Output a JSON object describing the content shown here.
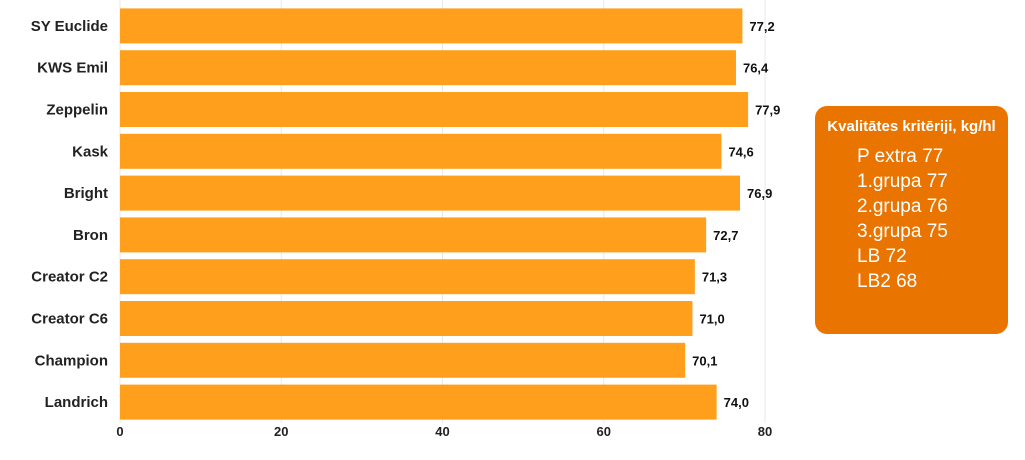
{
  "chart_data": {
    "type": "bar",
    "orientation": "horizontal",
    "categories": [
      "SY Euclide",
      "KWS Emil",
      "Zeppelin",
      "Kask",
      "Bright",
      "Bron",
      "Creator C2",
      "Creator C6",
      "Champion",
      "Landrich"
    ],
    "values": [
      77.2,
      76.4,
      77.9,
      74.6,
      76.9,
      72.7,
      71.3,
      71.0,
      70.1,
      74.0
    ],
    "value_labels": [
      "77,2",
      "76,4",
      "77,9",
      "74,6",
      "76,9",
      "72,7",
      "71,3",
      "71,0",
      "70,1",
      "74,0"
    ],
    "xlim": [
      0,
      80
    ],
    "x_ticks": [
      0,
      20,
      40,
      60,
      80
    ],
    "title": "",
    "xlabel": "",
    "ylabel": "",
    "grid": "vertical",
    "legend": "none",
    "bar_color": "#FF9F1C",
    "grid_color": "#E8E8E8"
  },
  "info_box": {
    "title": "Kvalitātes kritēriji, kg/hl",
    "items": [
      "P extra 77",
      "1.grupa 77",
      "2.grupa 76",
      "3.grupa 75",
      "LB 72",
      "LB2 68"
    ],
    "background": "#E97400"
  }
}
